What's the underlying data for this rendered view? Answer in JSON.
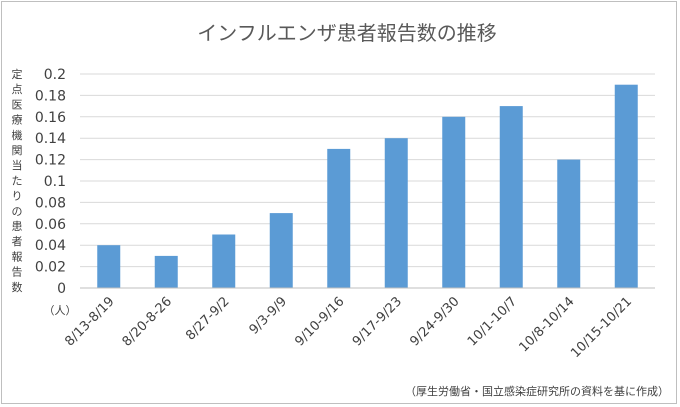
{
  "chart_data": {
    "type": "bar",
    "title": "インフルエンザ患者報告数の推移",
    "ylabel": "定点医療機関当たりの患者報告数",
    "y_unit": "（人）",
    "categories": [
      "8/13-8/19",
      "8/20-8-26",
      "8/27-9/2",
      "9/3-9/9",
      "9/10-9/16",
      "9/17-9/23",
      "9/24-9/30",
      "10/1-10/7",
      "10/8-10/14",
      "10/15-10/21"
    ],
    "values": [
      0.04,
      0.03,
      0.05,
      0.07,
      0.13,
      0.14,
      0.16,
      0.17,
      0.12,
      0.19
    ],
    "ylim": [
      0,
      0.2
    ],
    "yticks": [
      "0",
      "0.02",
      "0.04",
      "0.06",
      "0.08",
      "0.1",
      "0.12",
      "0.14",
      "0.16",
      "0.18",
      "0.2"
    ],
    "grid": true,
    "legend": "none",
    "bar_color": "#5b9bd5",
    "source_note": "（厚生労働省・国立感染症研究所の資料を基に作成）"
  }
}
